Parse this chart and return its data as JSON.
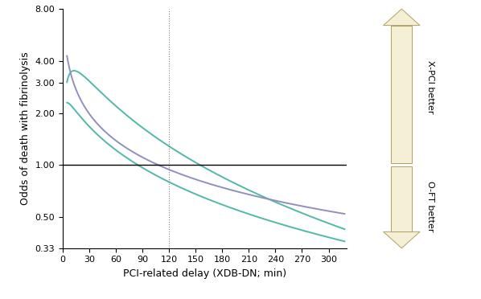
{
  "x_min": 0,
  "x_max": 320,
  "x_ticks": [
    0,
    30,
    60,
    90,
    120,
    150,
    180,
    210,
    240,
    270,
    300
  ],
  "y_log_min": 0.33,
  "y_log_max": 8.0,
  "y_ticks": [
    0.33,
    0.5,
    1.0,
    2.0,
    3.0,
    4.0,
    8.0
  ],
  "y_tick_labels": [
    "0.33",
    "0.50",
    "1.00",
    "2.00",
    "3.00",
    "4.00",
    "8.00"
  ],
  "xlabel": "PCI-related delay (XDB-DN; min)",
  "ylabel": "Odds of death with fibrinolysis",
  "vline_x": 120,
  "hline_y": 1.0,
  "color_upper": "#52b8a8",
  "color_middle": "#9090c0",
  "color_lower": "#52b8a8",
  "arrow_fill_color": "#f5f0d5",
  "arrow_edge_color": "#b0a060",
  "label_upper": "X-PCI better",
  "label_lower": "O-FT better",
  "bg_color": "#ffffff",
  "curve_upper_pts": [
    [
      15,
      3.5
    ],
    [
      155,
      1.0
    ],
    [
      310,
      0.44
    ]
  ],
  "curve_middle_pts": [
    [
      15,
      2.75
    ],
    [
      108,
      1.0
    ],
    [
      310,
      0.53
    ]
  ],
  "curve_lower_pts": [
    [
      15,
      2.05
    ],
    [
      85,
      1.0
    ],
    [
      310,
      0.37
    ]
  ]
}
